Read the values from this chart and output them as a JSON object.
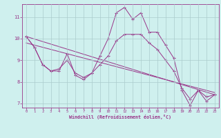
{
  "xlabel": "Windchill (Refroidissement éolien,°C)",
  "bg_color": "#cff0ee",
  "grid_color": "#aacccc",
  "line_color": "#993388",
  "xlim": [
    -0.5,
    23.5
  ],
  "ylim": [
    6.8,
    11.6
  ],
  "xticks": [
    0,
    1,
    2,
    3,
    4,
    5,
    6,
    7,
    8,
    9,
    10,
    11,
    12,
    13,
    14,
    15,
    16,
    17,
    18,
    19,
    20,
    21,
    22,
    23
  ],
  "yticks": [
    7,
    8,
    9,
    10,
    11
  ],
  "line1_x": [
    0,
    1,
    2,
    3,
    4,
    5,
    6,
    7,
    8,
    9,
    10,
    11,
    12,
    13,
    14,
    15,
    16,
    17,
    18,
    19,
    20,
    21,
    22,
    23
  ],
  "line1_y": [
    10.1,
    9.6,
    8.8,
    8.5,
    8.5,
    9.3,
    8.3,
    8.1,
    8.4,
    9.2,
    10.0,
    11.2,
    11.45,
    10.9,
    11.2,
    10.3,
    10.3,
    9.7,
    9.1,
    7.6,
    6.9,
    7.6,
    7.1,
    7.4
  ],
  "line2_x": [
    0,
    1,
    2,
    3,
    4,
    5,
    6,
    7,
    8,
    9,
    10,
    11,
    12,
    13,
    14,
    15,
    16,
    17,
    18,
    19,
    20,
    21,
    22,
    23
  ],
  "line2_y": [
    10.1,
    9.6,
    8.8,
    8.5,
    8.6,
    9.0,
    8.4,
    8.2,
    8.4,
    8.8,
    9.2,
    9.9,
    10.2,
    10.2,
    10.2,
    9.8,
    9.5,
    9.0,
    8.5,
    7.7,
    7.2,
    7.6,
    7.3,
    7.4
  ],
  "line3_x": [
    0,
    23
  ],
  "line3_y": [
    10.1,
    7.4
  ],
  "line4_x": [
    0,
    23
  ],
  "line4_y": [
    9.8,
    7.5
  ]
}
